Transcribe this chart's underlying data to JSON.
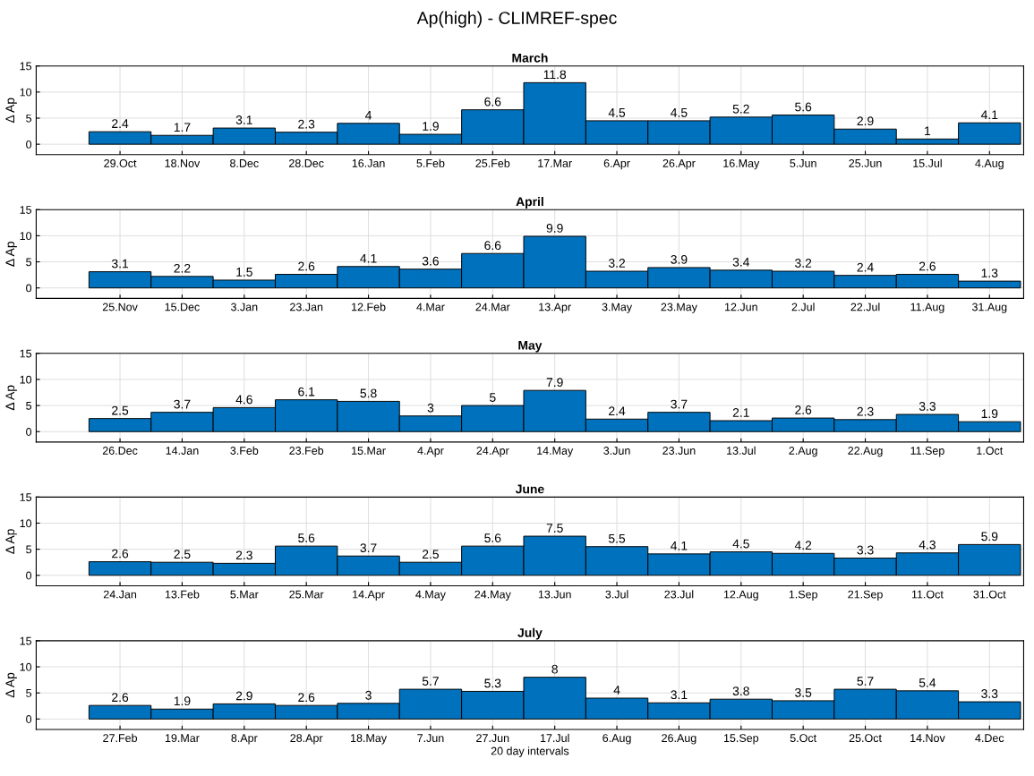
{
  "chart_data": [
    {
      "type": "bar",
      "title": "March",
      "ylabel": "Δ Ap",
      "categories": [
        "29.Oct",
        "18.Nov",
        "8.Dec",
        "28.Dec",
        "16.Jan",
        "5.Feb",
        "25.Feb",
        "17.Mar",
        "6.Apr",
        "26.Apr",
        "16.May",
        "5.Jun",
        "25.Jun",
        "15.Jul",
        "4.Aug"
      ],
      "values": [
        2.4,
        1.7,
        3.1,
        2.3,
        4,
        1.9,
        6.6,
        11.8,
        4.5,
        4.5,
        5.2,
        5.6,
        2.9,
        1,
        4.1
      ],
      "color": "#0072bd",
      "ylim": [
        -2,
        15
      ],
      "yticks": [
        0,
        5,
        10,
        15
      ],
      "grid": true,
      "data_labels": true,
      "annotations": [
        "Ap(high) - CLIMREF-spec"
      ]
    },
    {
      "type": "bar",
      "title": "April",
      "ylabel": "Δ Ap",
      "categories": [
        "25.Nov",
        "15.Dec",
        "3.Jan",
        "23.Jan",
        "12.Feb",
        "4.Mar",
        "24.Mar",
        "13.Apr",
        "3.May",
        "23.May",
        "12.Jun",
        "2.Jul",
        "22.Jul",
        "11.Aug",
        "31.Aug"
      ],
      "values": [
        3.1,
        2.2,
        1.5,
        2.6,
        4.1,
        3.6,
        6.6,
        9.9,
        3.2,
        3.9,
        3.4,
        3.2,
        2.4,
        2.6,
        1.3
      ],
      "color": "#0072bd",
      "ylim": [
        -2,
        15
      ],
      "yticks": [
        0,
        5,
        10,
        15
      ],
      "grid": true,
      "data_labels": true
    },
    {
      "type": "bar",
      "title": "May",
      "ylabel": "Δ Ap",
      "categories": [
        "26.Dec",
        "14.Jan",
        "3.Feb",
        "23.Feb",
        "15.Mar",
        "4.Apr",
        "24.Apr",
        "14.May",
        "3.Jun",
        "23.Jun",
        "13.Jul",
        "2.Aug",
        "22.Aug",
        "11.Sep",
        "1.Oct"
      ],
      "values": [
        2.5,
        3.7,
        4.6,
        6.1,
        5.8,
        3,
        5,
        7.9,
        2.4,
        3.7,
        2.1,
        2.6,
        2.3,
        3.3,
        1.9
      ],
      "color": "#0072bd",
      "ylim": [
        -2,
        15
      ],
      "yticks": [
        0,
        5,
        10,
        15
      ],
      "grid": true,
      "data_labels": true
    },
    {
      "type": "bar",
      "title": "June",
      "ylabel": "Δ Ap",
      "categories": [
        "24.Jan",
        "13.Feb",
        "5.Mar",
        "25.Mar",
        "14.Apr",
        "4.May",
        "24.May",
        "13.Jun",
        "3.Jul",
        "23.Jul",
        "12.Aug",
        "1.Sep",
        "21.Sep",
        "11.Oct",
        "31.Oct"
      ],
      "values": [
        2.6,
        2.5,
        2.3,
        5.6,
        3.7,
        2.5,
        5.6,
        7.5,
        5.5,
        4.1,
        4.5,
        4.2,
        3.3,
        4.3,
        5.9
      ],
      "color": "#0072bd",
      "ylim": [
        -2,
        15
      ],
      "yticks": [
        0,
        5,
        10,
        15
      ],
      "grid": true,
      "data_labels": true
    },
    {
      "type": "bar",
      "title": "July",
      "ylabel": "Δ Ap",
      "xlabel": "20 day intervals",
      "categories": [
        "27.Feb",
        "19.Mar",
        "8.Apr",
        "28.Apr",
        "18.May",
        "7.Jun",
        "27.Jun",
        "17.Jul",
        "6.Aug",
        "26.Aug",
        "15.Sep",
        "5.Oct",
        "25.Oct",
        "14.Nov",
        "4.Dec"
      ],
      "values": [
        2.6,
        1.9,
        2.9,
        2.6,
        3,
        5.7,
        5.3,
        8,
        4,
        3.1,
        3.8,
        3.5,
        5.7,
        5.4,
        3.3
      ],
      "color": "#0072bd",
      "ylim": [
        -2,
        15
      ],
      "yticks": [
        0,
        5,
        10,
        15
      ],
      "grid": true,
      "data_labels": true
    }
  ]
}
